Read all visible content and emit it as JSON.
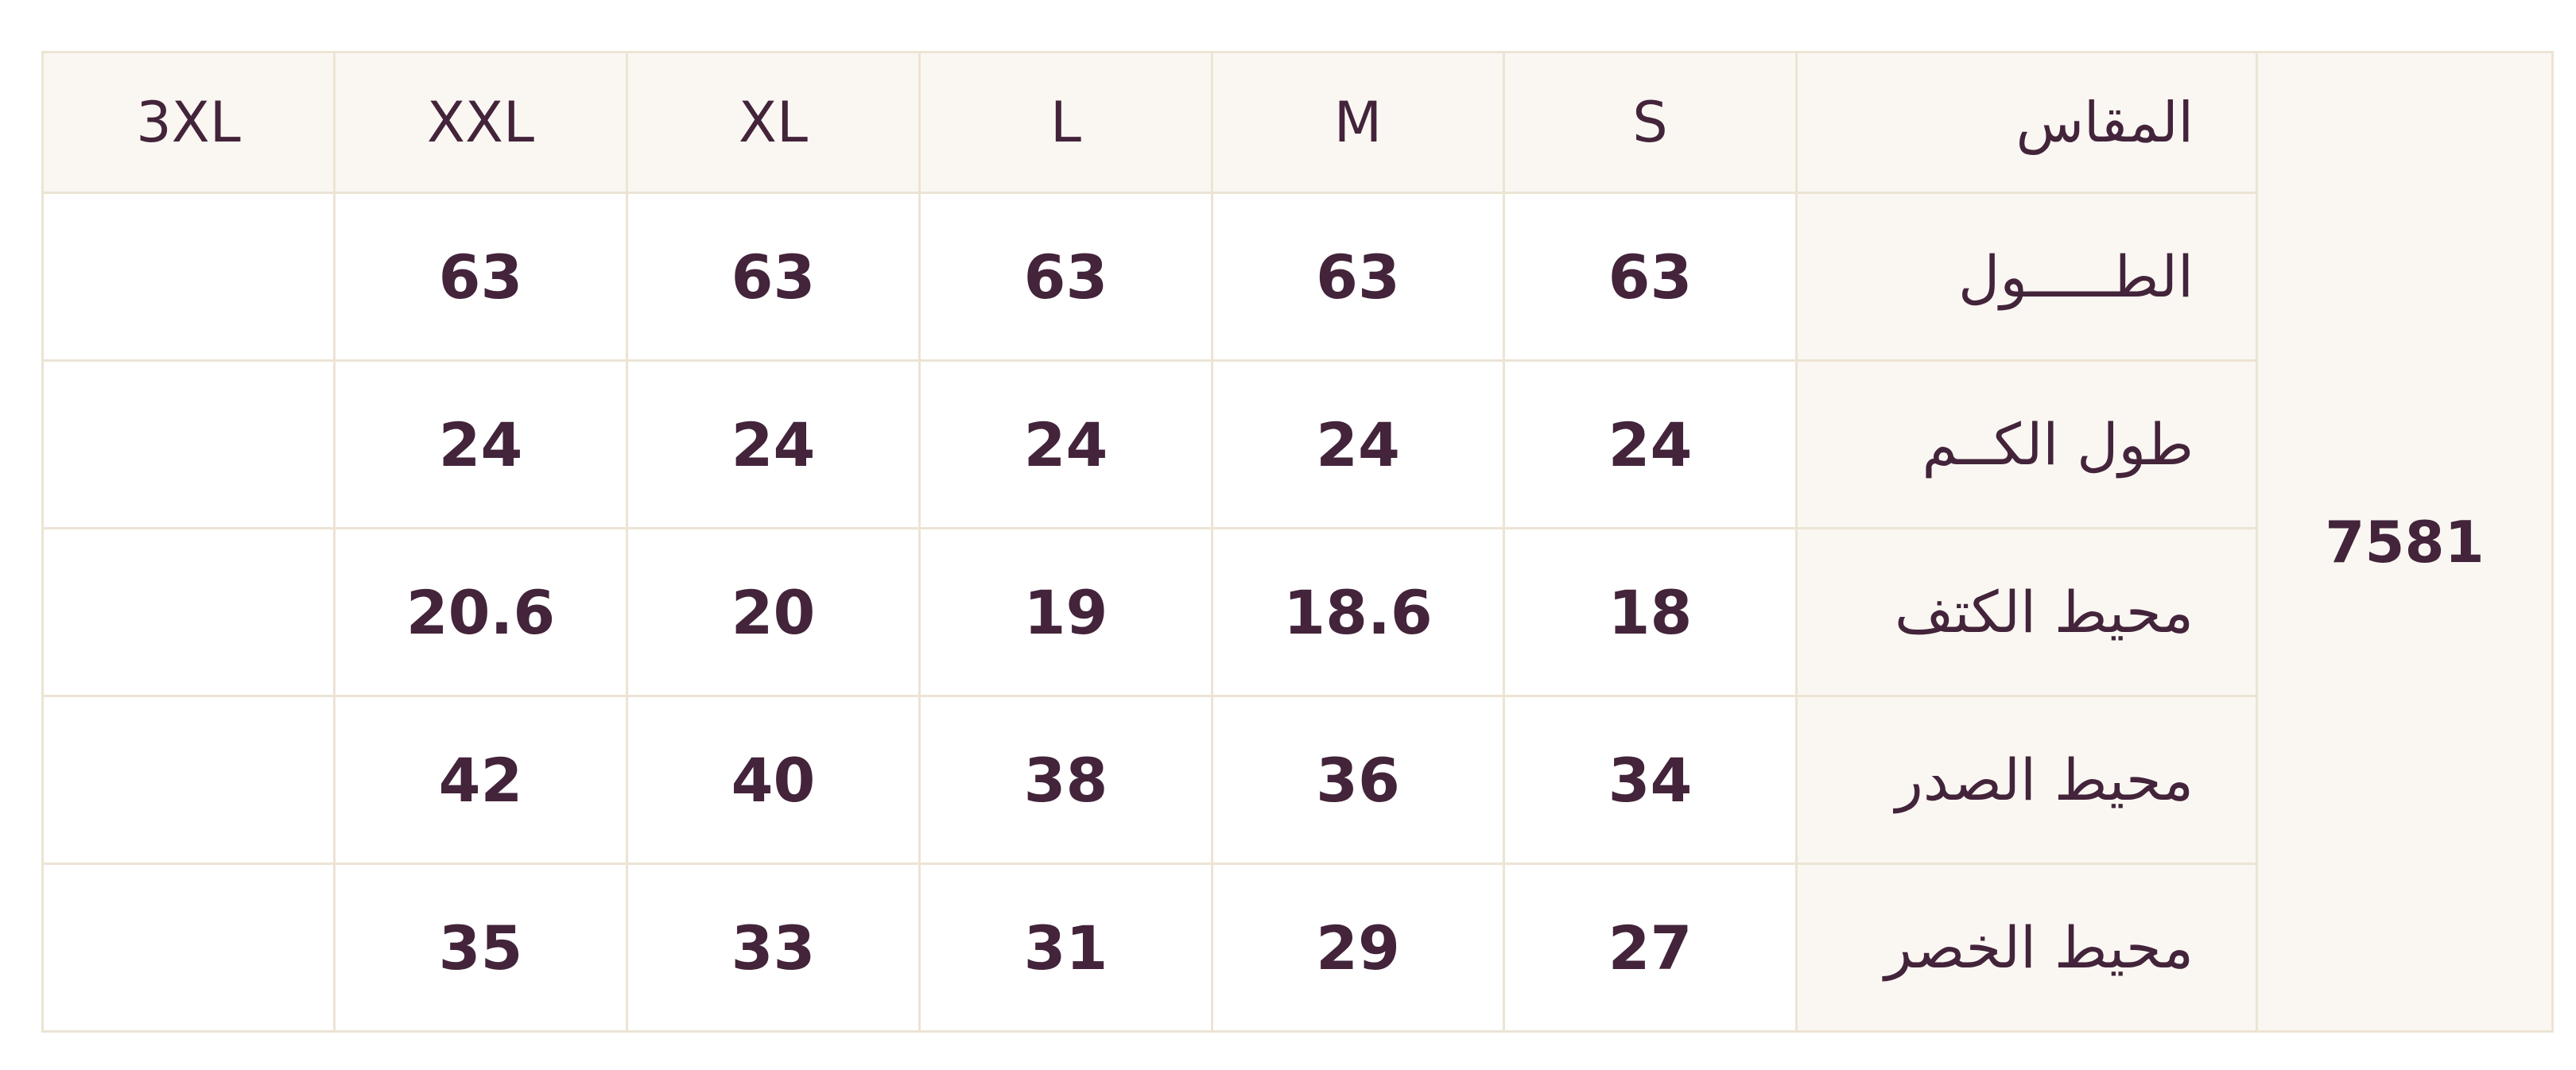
{
  "product_code": "7581",
  "header": {
    "label": "المقاس",
    "sizes": [
      "S",
      "M",
      "L",
      "XL",
      "XXL",
      "3XL"
    ]
  },
  "rows": [
    {
      "label": "الطـــــول",
      "values": [
        "63",
        "63",
        "63",
        "63",
        "63",
        ""
      ]
    },
    {
      "label": "طول الكــم",
      "values": [
        "24",
        "24",
        "24",
        "24",
        "24",
        ""
      ]
    },
    {
      "label": "محيط الكتف",
      "values": [
        "18",
        "18.6",
        "19",
        "20",
        "20.6",
        ""
      ]
    },
    {
      "label": "محيط الصدر",
      "values": [
        "34",
        "36",
        "38",
        "40",
        "42",
        ""
      ]
    },
    {
      "label": "محيط الخصر",
      "values": [
        "27",
        "29",
        "31",
        "33",
        "35",
        ""
      ]
    }
  ],
  "colors": {
    "text": "#43243a",
    "header_bg": "#faf7f2",
    "border": "#ece4d4"
  }
}
